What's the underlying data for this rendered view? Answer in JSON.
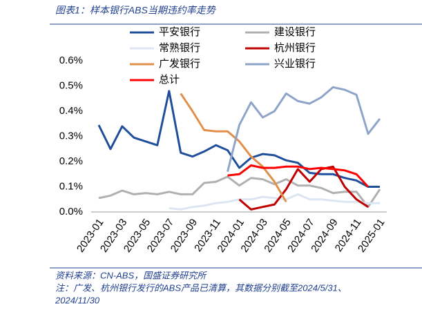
{
  "chart_data": {
    "type": "line",
    "title": "图表1：样本银行ABS当期违约率走势",
    "source": "资料来源：CN-ABS，国盛证券研究所",
    "notes": [
      "注：广发、杭州银行发行的ABS产品已清算，其数据分别截至2024/5/31、",
      "2024/11/30"
    ],
    "categories": [
      "2023-01",
      null,
      "2023-03",
      null,
      "2023-05",
      null,
      "2023-07",
      null,
      "2023-09",
      null,
      "2023-11",
      null,
      "2024-01",
      null,
      "2024-03",
      null,
      "2024-05",
      null,
      "2024-07",
      null,
      "2024-09",
      null,
      "2024-11",
      null,
      "2025-01"
    ],
    "ylim": [
      0,
      0.6
    ],
    "yticks": [
      {
        "value": 0,
        "label": "0.0%"
      },
      {
        "value": 0.1,
        "label": "0.1%"
      },
      {
        "value": 0.2,
        "label": "0.2%"
      },
      {
        "value": 0.3,
        "label": "0.3%"
      },
      {
        "value": 0.4,
        "label": "0.4%"
      },
      {
        "value": 0.5,
        "label": "0.5%"
      },
      {
        "value": 0.6,
        "label": "0.6%"
      }
    ],
    "grid": false,
    "series": [
      {
        "name": "平安银行",
        "color": "#1f4e9a",
        "values": [
          0.345,
          0.25,
          0.34,
          0.295,
          0.28,
          0.265,
          0.48,
          0.235,
          0.22,
          0.24,
          0.265,
          0.245,
          0.175,
          0.215,
          0.23,
          0.225,
          0.205,
          0.195,
          0.155,
          0.15,
          0.15,
          0.135,
          0.125,
          0.1,
          0.1
        ]
      },
      {
        "name": "建设银行",
        "color": "#b0b0b0",
        "values": [
          0.055,
          0.065,
          0.085,
          0.07,
          0.075,
          0.07,
          0.08,
          0.07,
          0.07,
          0.115,
          0.12,
          0.14,
          0.105,
          0.135,
          0.13,
          0.11,
          0.13,
          0.105,
          0.105,
          0.095,
          0.075,
          0.08,
          0.08,
          0.02,
          0.09
        ]
      },
      {
        "name": "常熟银行",
        "color": "#dce6f2",
        "values": [
          null,
          null,
          null,
          null,
          null,
          null,
          0.015,
          0.01,
          0.02,
          0.025,
          0.035,
          0.04,
          0.05,
          0.05,
          0.06,
          0.055,
          0.05,
          0.07,
          0.05,
          0.05,
          0.045,
          0.04,
          0.04,
          0.035,
          0.035
        ]
      },
      {
        "name": "杭州银行",
        "color": "#c00000",
        "values": [
          null,
          null,
          null,
          null,
          null,
          null,
          null,
          null,
          null,
          null,
          null,
          null,
          0.05,
          0.01,
          0.02,
          0.03,
          0.09,
          0.17,
          0.12,
          0.17,
          0.18,
          0.1,
          0.05,
          0.02,
          null
        ]
      },
      {
        "name": "广发银行",
        "color": "#e0904a",
        "values": [
          null,
          null,
          null,
          null,
          null,
          null,
          null,
          0.47,
          0.4,
          0.325,
          0.32,
          0.32,
          0.28,
          0.22,
          0.18,
          0.12,
          0.04,
          null,
          null,
          null,
          null,
          null,
          null,
          null,
          null
        ]
      },
      {
        "name": "兴业银行",
        "color": "#8ea4c8",
        "values": [
          null,
          null,
          null,
          null,
          null,
          null,
          null,
          null,
          null,
          null,
          null,
          0.16,
          0.345,
          0.435,
          0.375,
          0.4,
          0.47,
          0.44,
          0.43,
          0.455,
          0.495,
          0.485,
          0.465,
          0.31,
          0.37
        ]
      },
      {
        "name": "总计",
        "color": "#ff0000",
        "values": [
          null,
          null,
          null,
          null,
          null,
          null,
          null,
          null,
          null,
          null,
          null,
          0.145,
          0.15,
          0.185,
          0.175,
          0.175,
          0.18,
          0.18,
          0.17,
          0.175,
          0.17,
          0.165,
          0.15,
          0.1,
          null
        ]
      }
    ]
  }
}
